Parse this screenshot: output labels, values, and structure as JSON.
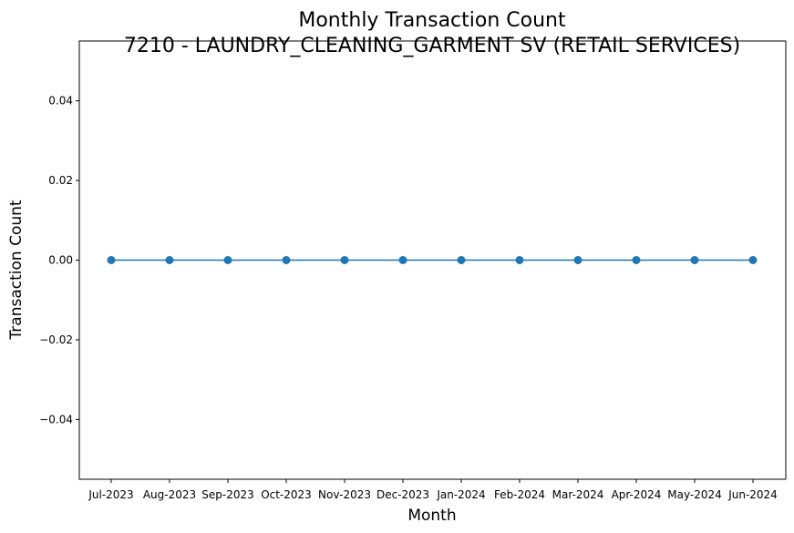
{
  "chart_data": {
    "type": "line",
    "title": "Monthly Transaction Count",
    "subtitle": "7210 - LAUNDRY_CLEANING_GARMENT SV (RETAIL SERVICES)",
    "xlabel": "Month",
    "ylabel": "Transaction Count",
    "categories": [
      "Jul-2023",
      "Aug-2023",
      "Sep-2023",
      "Oct-2023",
      "Nov-2023",
      "Dec-2023",
      "Jan-2024",
      "Feb-2024",
      "Mar-2024",
      "Apr-2024",
      "May-2024",
      "Jun-2024"
    ],
    "series": [
      {
        "values": [
          0,
          0,
          0,
          0,
          0,
          0,
          0,
          0,
          0,
          0,
          0,
          0
        ],
        "color": "#1f77b4",
        "marker": "circle"
      }
    ],
    "ylim": [
      -0.055,
      0.055
    ],
    "yticks": [
      -0.04,
      -0.02,
      0.0,
      0.02,
      0.04
    ],
    "ytick_labels": [
      "−0.04",
      "−0.02",
      "0.00",
      "0.02",
      "0.04"
    ],
    "grid": false,
    "legend": "none"
  }
}
